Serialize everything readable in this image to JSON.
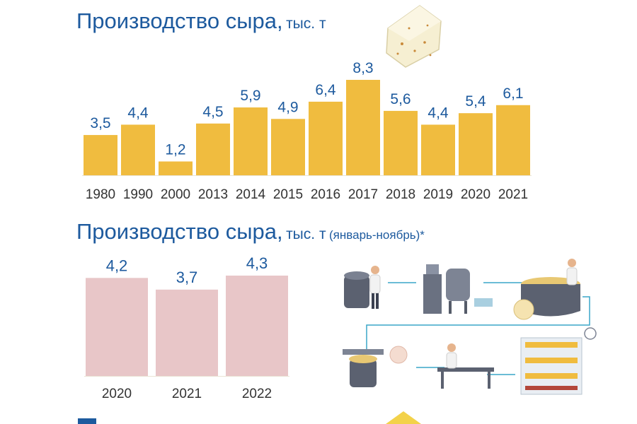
{
  "titles": {
    "top": {
      "main": "Производство сыра,",
      "unit": "тыс. т"
    },
    "bottom": {
      "main": "Производство сыра,",
      "unit": "тыс. т",
      "note": "(январь-ноябрь)*"
    }
  },
  "colors": {
    "title": "#1d5a9e",
    "bar_annual": "#f0bc3f",
    "bar_period": "#e8c6c8",
    "value_label": "#1d5a9e",
    "axis_label": "#333333"
  },
  "icons": [
    "cheese-wedge-icon",
    "cheese-factory-illustration",
    "cheese-slice-icon"
  ],
  "chart_data": [
    {
      "type": "bar",
      "title": "Производство сыра, тыс. т",
      "categories": [
        "1980",
        "1990",
        "2000",
        "2013",
        "2014",
        "2015",
        "2016",
        "2017",
        "2018",
        "2019",
        "2020",
        "2021"
      ],
      "values": [
        3.5,
        4.4,
        1.2,
        4.5,
        5.9,
        4.9,
        6.4,
        8.3,
        5.6,
        4.4,
        5.4,
        6.1
      ],
      "value_labels": [
        "3,5",
        "4,4",
        "1,2",
        "4,5",
        "5,9",
        "4,9",
        "6,4",
        "8,3",
        "5,6",
        "4,4",
        "5,4",
        "6,1"
      ],
      "xlabel": "",
      "ylabel": "",
      "ylim": [
        0,
        8.3
      ],
      "grid": false
    },
    {
      "type": "bar",
      "title": "Производство сыра, тыс. т (январь-ноябрь)*",
      "categories": [
        "2020",
        "2021",
        "2022"
      ],
      "values": [
        4.2,
        3.7,
        4.3
      ],
      "value_labels": [
        "4,2",
        "3,7",
        "4,3"
      ],
      "xlabel": "",
      "ylabel": "",
      "ylim": [
        0,
        4.3
      ],
      "grid": false
    }
  ]
}
